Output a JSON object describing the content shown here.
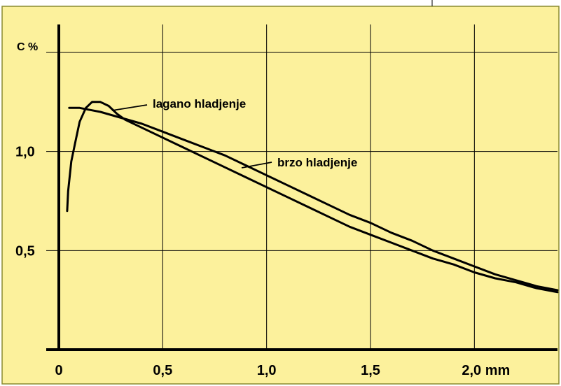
{
  "chart_data": {
    "type": "line",
    "title": "",
    "ylabel": "C %",
    "xlabel": "",
    "x_unit": "mm",
    "xlim": [
      0,
      2.4
    ],
    "ylim": [
      0,
      1.5
    ],
    "grid": true,
    "x_ticks": [
      0,
      0.5,
      1.0,
      1.5,
      2.0
    ],
    "x_tick_labels": [
      "0",
      "0,5",
      "1,0",
      "1,5",
      "2,0 mm"
    ],
    "y_ticks": [
      0.5,
      1.0
    ],
    "y_tick_labels": [
      "0,5",
      "1,0"
    ],
    "series": [
      {
        "name": "lagano hladjenje",
        "x": [
          0.05,
          0.1,
          0.15,
          0.2,
          0.3,
          0.4,
          0.5,
          0.6,
          0.7,
          0.8,
          0.9,
          1.0,
          1.1,
          1.2,
          1.3,
          1.4,
          1.5,
          1.6,
          1.7,
          1.8,
          1.9,
          2.0,
          2.1,
          2.2,
          2.3,
          2.4
        ],
        "y": [
          1.22,
          1.22,
          1.21,
          1.2,
          1.17,
          1.14,
          1.1,
          1.06,
          1.02,
          0.98,
          0.93,
          0.88,
          0.83,
          0.78,
          0.73,
          0.68,
          0.64,
          0.59,
          0.55,
          0.5,
          0.46,
          0.42,
          0.38,
          0.35,
          0.32,
          0.3
        ]
      },
      {
        "name": "brzo hladjenje",
        "x": [
          0.04,
          0.045,
          0.06,
          0.08,
          0.1,
          0.13,
          0.16,
          0.2,
          0.24,
          0.28,
          0.32,
          0.4,
          0.5,
          0.6,
          0.7,
          0.8,
          0.9,
          1.0,
          1.1,
          1.2,
          1.3,
          1.4,
          1.5,
          1.6,
          1.7,
          1.8,
          1.9,
          2.0,
          2.1,
          2.2,
          2.3,
          2.4
        ],
        "y": [
          0.7,
          0.8,
          0.95,
          1.05,
          1.15,
          1.22,
          1.25,
          1.25,
          1.23,
          1.19,
          1.16,
          1.12,
          1.07,
          1.02,
          0.97,
          0.92,
          0.87,
          0.82,
          0.77,
          0.72,
          0.67,
          0.62,
          0.58,
          0.54,
          0.5,
          0.46,
          0.43,
          0.39,
          0.36,
          0.34,
          0.31,
          0.29
        ]
      }
    ],
    "annotations": [
      "lagano hladjenje",
      "brzo hladjenje"
    ]
  },
  "colors": {
    "background": "#fcf19c",
    "border": "#8a8a30",
    "lines": "#000000"
  }
}
